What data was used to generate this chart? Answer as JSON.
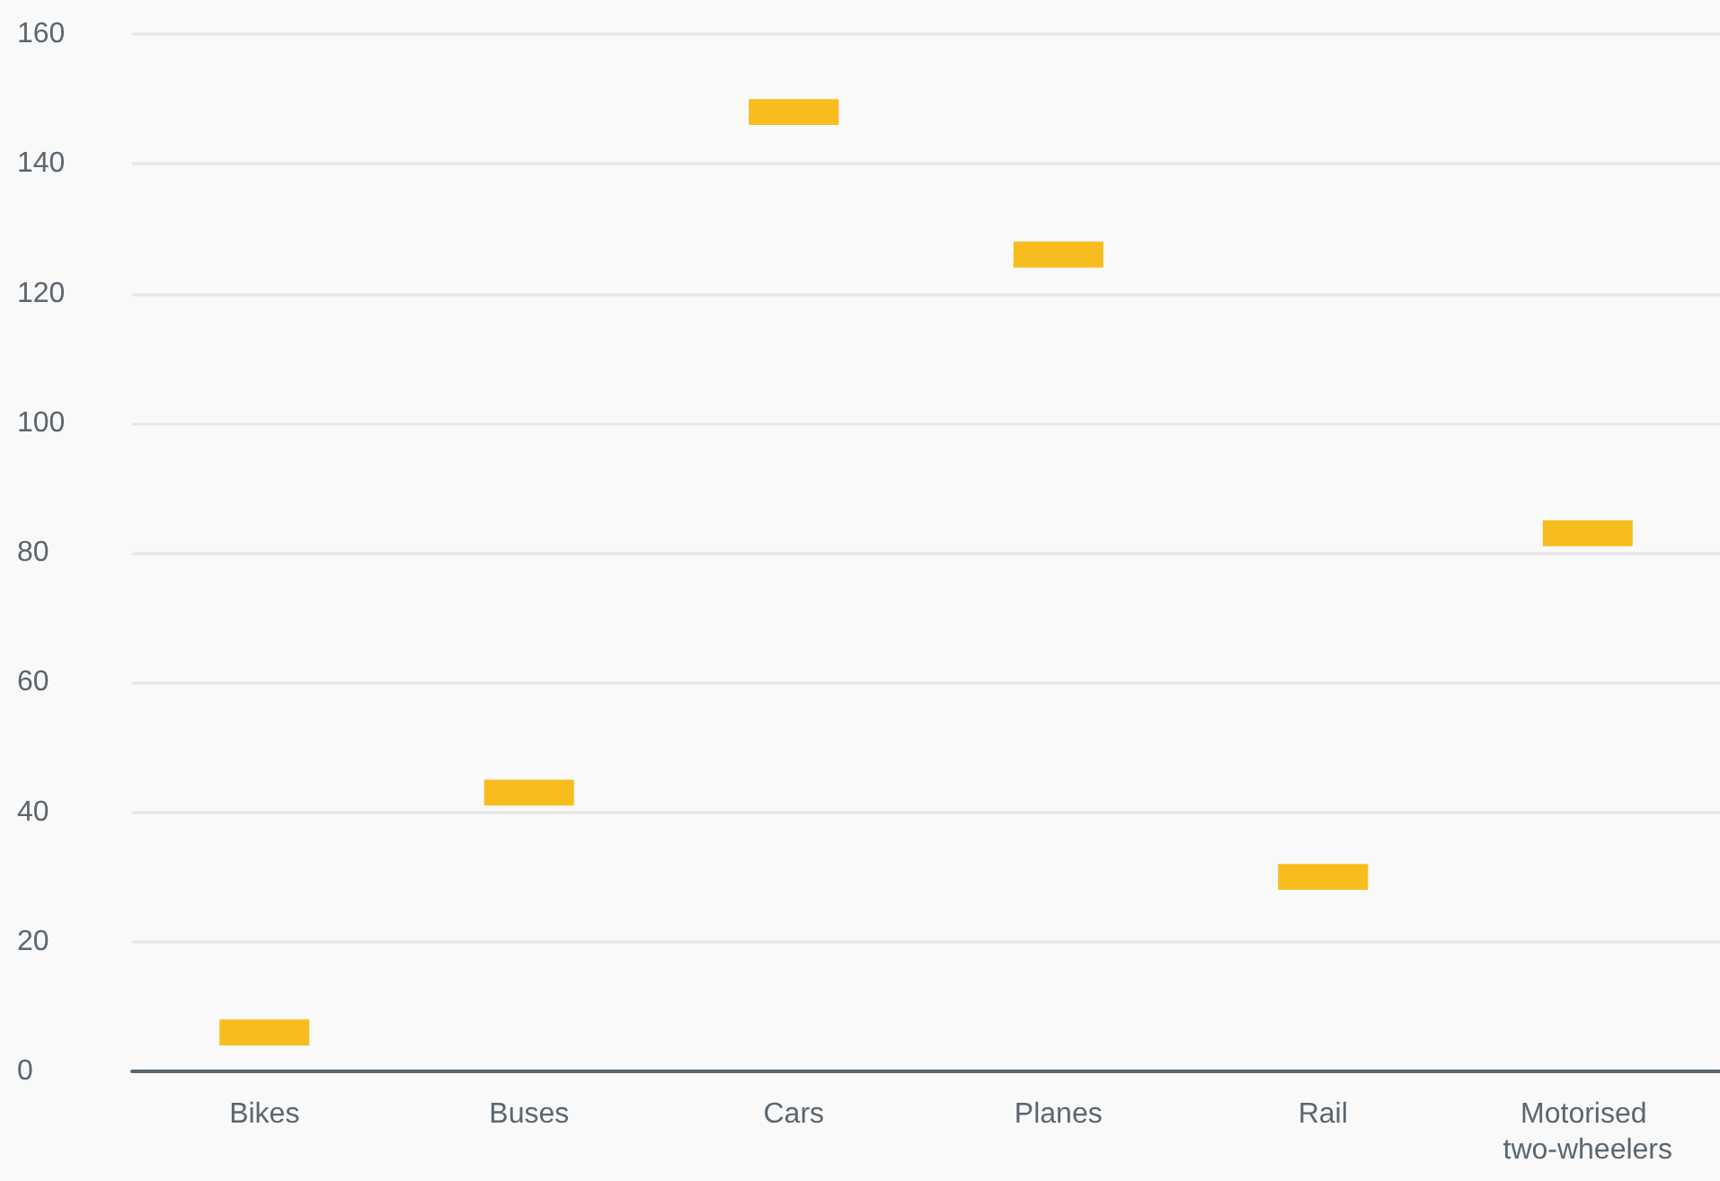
{
  "chart_data": {
    "type": "bar",
    "categories": [
      "Bikes",
      "Buses",
      "Cars",
      "Planes",
      "Rail",
      "Motorised two-wheelers"
    ],
    "base": [
      4,
      41,
      146,
      124,
      28,
      81
    ],
    "values": [
      4,
      4,
      4,
      4,
      4,
      4
    ],
    "color": "#f7bc1e",
    "ylim": [
      0,
      160
    ],
    "yticks": [
      0,
      20,
      40,
      60,
      80,
      100,
      120,
      140,
      160
    ],
    "grid": "y"
  }
}
